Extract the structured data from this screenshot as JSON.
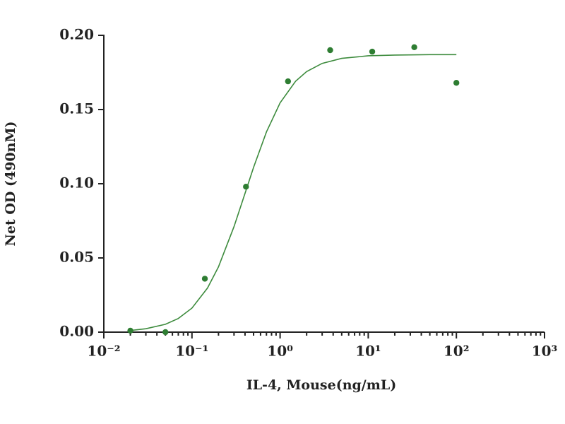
{
  "chart_data": {
    "type": "scatter",
    "xlabel": "IL-4, Mouse(ng/mL)",
    "ylabel": "Net OD (490nM)",
    "x": [
      0.02,
      0.05,
      0.14,
      0.41,
      1.23,
      3.7,
      11.1,
      33.3,
      100
    ],
    "values": [
      0.001,
      0,
      0.036,
      0.098,
      0.169,
      0.19,
      0.189,
      0.192,
      0.168
    ],
    "color": "#2e7d32",
    "curve": {
      "x": [
        0.02,
        0.03,
        0.05,
        0.07,
        0.1,
        0.15,
        0.2,
        0.3,
        0.4,
        0.5,
        0.7,
        1,
        1.5,
        2,
        3,
        5,
        10,
        20,
        50,
        100
      ],
      "values": [
        0.0011,
        0.0023,
        0.0053,
        0.0092,
        0.0162,
        0.0297,
        0.044,
        0.0711,
        0.0935,
        0.111,
        0.1349,
        0.1545,
        0.1691,
        0.1756,
        0.1811,
        0.1845,
        0.1862,
        0.1867,
        0.187,
        0.187
      ],
      "color": "#3d8b3d"
    },
    "xscale": "log",
    "xminor": true,
    "xlim": [
      0.01,
      1000
    ],
    "xticks": [
      {
        "value": 0.01,
        "label": "10⁻²"
      },
      {
        "value": 0.1,
        "label": "10⁻¹"
      },
      {
        "value": 1,
        "label": "10⁰"
      },
      {
        "value": 10,
        "label": "10¹"
      },
      {
        "value": 100,
        "label": "10²"
      },
      {
        "value": 1000,
        "label": "10³"
      }
    ],
    "ylim": [
      0,
      0.2
    ],
    "yticks": [
      {
        "value": 0,
        "label": "0.00"
      },
      {
        "value": 0.05,
        "label": "0.05"
      },
      {
        "value": 0.1,
        "label": "0.10"
      },
      {
        "value": 0.15,
        "label": "0.15"
      },
      {
        "value": 0.2,
        "label": "0.20"
      }
    ]
  }
}
